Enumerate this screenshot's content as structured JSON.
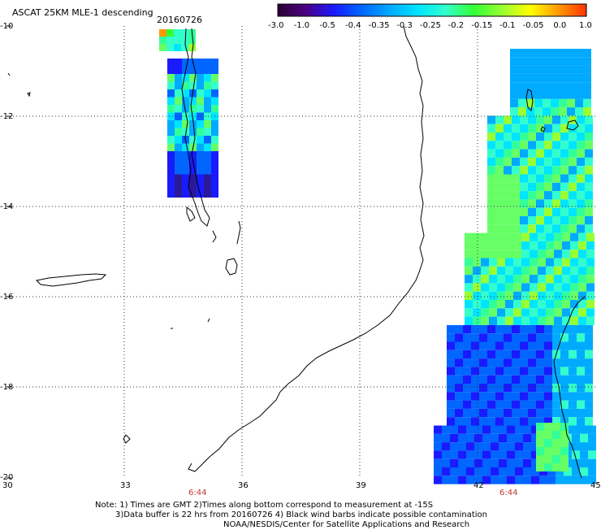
{
  "header": {
    "title": "ASCAT 25KM MLE-1 descending",
    "date": "20160726"
  },
  "colorbar": {
    "ticks": [
      "-3.0",
      "-1.0",
      "-0.5",
      "-0.4",
      "-0.35",
      "-0.3",
      "-0.25",
      "-0.2",
      "-0.15",
      "-0.1",
      "-0.05",
      "0.0",
      "1.0"
    ],
    "colors": [
      "#2a0033",
      "#4b0082",
      "#1a1aff",
      "#0066ff",
      "#00aaff",
      "#00e5ff",
      "#33ffcc",
      "#33ff33",
      "#99ff33",
      "#ffff00",
      "#ff9900",
      "#ff3300"
    ]
  },
  "map": {
    "lat_labels": [
      "-10",
      "-12",
      "-14",
      "-16",
      "-18",
      "-20"
    ],
    "lon_labels": [
      "30",
      "33",
      "36",
      "39",
      "42",
      "45"
    ],
    "pass_times": [
      "6:44",
      "6:44"
    ]
  },
  "notes": {
    "line1": "Note: 1) Times are GMT 2)Times along bottom correspond to measurement at -15S",
    "line2": "3)Data buffer is 22 hrs from 20160726 4) Black wind barbs indicate possible contamination",
    "line3": "NOAA/NESDIS/Center for Satellite Applications and Research"
  }
}
